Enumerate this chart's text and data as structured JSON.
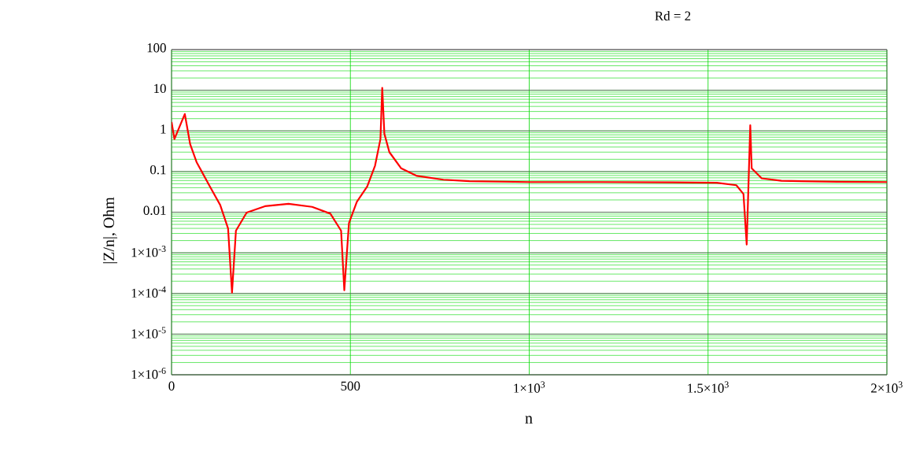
{
  "chart_data": {
    "type": "line",
    "title": "Rd = 2",
    "xlabel": "n",
    "ylabel": "|Z/n|, Ohm",
    "log": "y",
    "grid": true,
    "line_style": "solid",
    "marker": "none",
    "xlim": [
      0,
      2000
    ],
    "ylim": [
      1e-06,
      100
    ],
    "xticks": [
      0,
      500,
      {
        "value": 1000,
        "label": "1×10$^{3}$"
      },
      {
        "value": 1500,
        "label": "1.5×10$^{3}$"
      },
      {
        "value": 2000,
        "label": "2×10$^{3}$"
      }
    ],
    "yticks": [
      {
        "value": 1e-06,
        "label": "1×10$^{-6}$"
      },
      {
        "value": 1e-05,
        "label": "1×10$^{-5}$"
      },
      {
        "value": 0.0001,
        "label": "1×10$^{-4}$"
      },
      {
        "value": 0.001,
        "label": "1×10$^{-3}$"
      },
      0.01,
      0.1,
      1,
      10,
      100
    ],
    "series": [
      {
        "color": "#ff0000",
        "x": [
          0,
          8,
          37,
          52,
          70,
          107,
          136,
          158,
          169,
          180,
          210,
          261,
          327,
          393,
          444,
          474,
          483,
          496,
          518,
          547,
          569,
          584,
          589,
          595,
          609,
          642,
          686,
          760,
          833,
          1000,
          1200,
          1400,
          1524,
          1579,
          1599,
          1608,
          1618,
          1622,
          1650,
          1705,
          1862,
          2000
        ],
        "values": [
          1.65,
          0.63,
          2.6,
          0.47,
          0.17,
          0.043,
          0.015,
          0.004,
          0.000105,
          0.0035,
          0.0098,
          0.014,
          0.016,
          0.0135,
          0.0092,
          0.0035,
          0.00012,
          0.0054,
          0.018,
          0.043,
          0.14,
          0.63,
          11.5,
          0.85,
          0.3,
          0.12,
          0.078,
          0.063,
          0.058,
          0.055,
          0.055,
          0.054,
          0.053,
          0.046,
          0.028,
          0.0016,
          1.38,
          0.12,
          0.068,
          0.059,
          0.056,
          0.055
        ]
      }
    ]
  }
}
